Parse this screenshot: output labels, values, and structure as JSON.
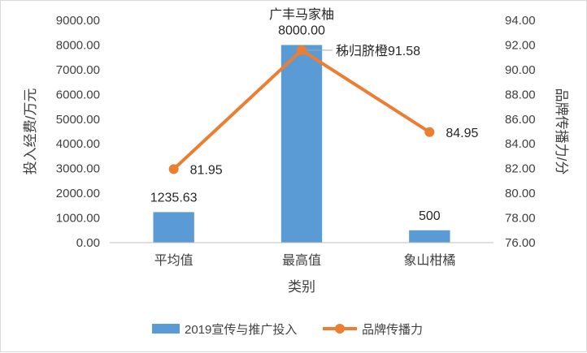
{
  "chart_data": {
    "type": "bar+line",
    "categories": [
      "平均值",
      "最高值",
      "象山柑橘"
    ],
    "series": [
      {
        "name": "2019宣传与推广投入",
        "type": "bar",
        "axis": "left",
        "values": [
          1235.63,
          8000,
          500
        ],
        "labels": [
          "1235.63",
          "8000.00",
          "500"
        ],
        "color": "#5b9bd5"
      },
      {
        "name": "品牌传播力",
        "type": "line",
        "axis": "right",
        "values": [
          81.95,
          91.58,
          84.95
        ],
        "labels": [
          "81.95",
          "秭归脐橙91.58",
          "84.95"
        ],
        "color": "#ed7d31"
      }
    ],
    "annotations": [
      {
        "text": "广丰马家柚",
        "attached_to": "最高值"
      }
    ],
    "xlabel": "类别",
    "ylabel_left": "投入经费/万元",
    "ylabel_right": "品牌传播力/分",
    "ylim_left": [
      0,
      9000
    ],
    "ylim_right": [
      76,
      94
    ],
    "yticks_left": [
      "0.00",
      "1000.00",
      "2000.00",
      "3000.00",
      "4000.00",
      "5000.00",
      "6000.00",
      "7000.00",
      "8000.00",
      "9000.00"
    ],
    "yticks_right": [
      "76.00",
      "78.00",
      "80.00",
      "82.00",
      "84.00",
      "86.00",
      "88.00",
      "90.00",
      "92.00",
      "94.00"
    ],
    "grid": false,
    "legend_position": "bottom"
  }
}
